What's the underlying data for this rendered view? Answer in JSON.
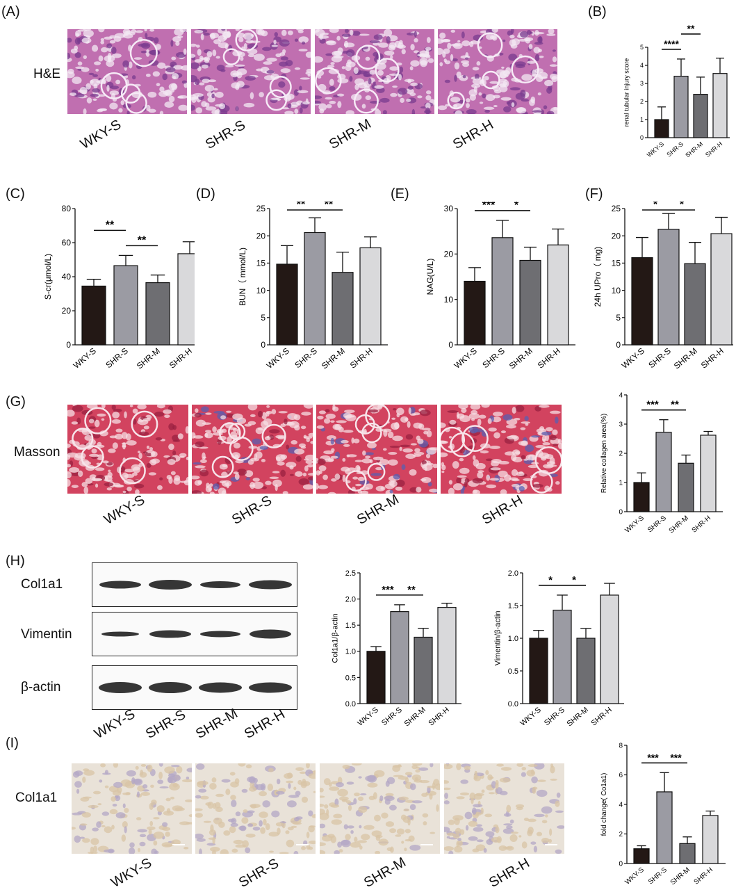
{
  "panels": {
    "A": "(A)",
    "B": "(B)",
    "C": "(C)",
    "D": "(D)",
    "E": "(E)",
    "F": "(F)",
    "G": "(G)",
    "H": "(H)",
    "I": "(I)"
  },
  "rows": {
    "he": "H&E",
    "masson": "Masson",
    "ihc": "Col1a1",
    "blot": [
      "Col1a1",
      "Vimentin",
      "β-actin"
    ]
  },
  "groups": [
    "WKY-S",
    "SHR-S",
    "SHR-M",
    "SHR-H"
  ],
  "colors": {
    "he": "#c06fb0",
    "masson": "#d2435f",
    "ihc": "#e9e2d8",
    "bars": [
      "#231815",
      "#9b9ba3",
      "#6e6e72",
      "#d9d9db"
    ]
  },
  "chart_data": [
    {
      "id": "B",
      "type": "bar",
      "categories": [
        "WKY-S",
        "SHR-S",
        "SHR-M",
        "SHR-H"
      ],
      "values": [
        1.0,
        3.4,
        2.4,
        3.55
      ],
      "errors": [
        0.7,
        0.95,
        0.95,
        0.85
      ],
      "ylabel": "renal tubular injury score",
      "ylim": [
        0,
        5
      ],
      "yticks": [
        "0",
        "1",
        "2",
        "3",
        "4",
        "5"
      ],
      "sig": [
        {
          "from": 0,
          "to": 1,
          "label": "****",
          "level": 0
        },
        {
          "from": 1,
          "to": 2,
          "label": "**",
          "level": 1
        }
      ]
    },
    {
      "id": "C",
      "type": "bar",
      "categories": [
        "WKY-S",
        "SHR-S",
        "SHR-M",
        "SHR-H"
      ],
      "values": [
        34.5,
        46.5,
        36.5,
        53.5
      ],
      "errors": [
        4,
        6,
        4.5,
        7
      ],
      "ylabel": "S-cr(μmol/L)",
      "ylim": [
        0,
        80
      ],
      "yticks": [
        "0",
        "20",
        "40",
        "60",
        "80"
      ],
      "sig": [
        {
          "from": 0,
          "to": 1,
          "label": "**",
          "level": 1
        },
        {
          "from": 1,
          "to": 2,
          "label": "**",
          "level": 0
        }
      ]
    },
    {
      "id": "D",
      "type": "bar",
      "categories": [
        "WKY-S",
        "SHR-S",
        "SHR-M",
        "SHR-H"
      ],
      "values": [
        14.8,
        20.6,
        13.3,
        17.8
      ],
      "errors": [
        3.4,
        2.7,
        3.7,
        2
      ],
      "ylabel": "BUN（ mmol/L)",
      "ylim": [
        0,
        25
      ],
      "yticks": [
        "0",
        "5",
        "10",
        "15",
        "20",
        "25"
      ],
      "sig": [
        {
          "from": 0,
          "to": 1,
          "label": "**",
          "level": 0
        },
        {
          "from": 1,
          "to": 2,
          "label": "**",
          "level": 0
        }
      ]
    },
    {
      "id": "E",
      "type": "bar",
      "categories": [
        "WKY-S",
        "SHR-S",
        "SHR-M",
        "SHR-H"
      ],
      "values": [
        14,
        23.6,
        18.6,
        22
      ],
      "errors": [
        3,
        3.8,
        2.9,
        3.5
      ],
      "ylabel": "NAG(U/L)",
      "ylim": [
        0,
        30
      ],
      "yticks": [
        "0",
        "10",
        "20",
        "30"
      ],
      "sig": [
        {
          "from": 0,
          "to": 1,
          "label": "***",
          "level": 0
        },
        {
          "from": 1,
          "to": 2,
          "label": "*",
          "level": 0
        }
      ]
    },
    {
      "id": "F",
      "type": "bar",
      "categories": [
        "WKY-S",
        "SHR-S",
        "SHR-M",
        "SHR-H"
      ],
      "values": [
        16,
        21.2,
        14.9,
        20.4
      ],
      "errors": [
        3.7,
        2.9,
        3.9,
        3
      ],
      "ylabel": "24h UPro（ mg)",
      "ylim": [
        0,
        25
      ],
      "yticks": [
        "0",
        "5",
        "10",
        "15",
        "20",
        "25"
      ],
      "sig": [
        {
          "from": 0,
          "to": 1,
          "label": "*",
          "level": 0
        },
        {
          "from": 1,
          "to": 2,
          "label": "*",
          "level": 0
        }
      ]
    },
    {
      "id": "G",
      "type": "bar",
      "categories": [
        "WKY-S",
        "SHR-S",
        "SHR-M",
        "SHR-H"
      ],
      "values": [
        1.0,
        2.72,
        1.66,
        2.62
      ],
      "errors": [
        0.33,
        0.43,
        0.28,
        0.13
      ],
      "ylabel": "Relative collagen area(%)",
      "ylim": [
        0,
        4
      ],
      "yticks": [
        "0",
        "1",
        "2",
        "3",
        "4"
      ],
      "sig": [
        {
          "from": 0,
          "to": 1,
          "label": "***",
          "level": 0
        },
        {
          "from": 1,
          "to": 2,
          "label": "**",
          "level": 0
        }
      ]
    },
    {
      "id": "H1",
      "type": "bar",
      "categories": [
        "WKY-S",
        "SHR-S",
        "SHR-M",
        "SHR-H"
      ],
      "values": [
        1.0,
        1.76,
        1.27,
        1.84
      ],
      "errors": [
        0.09,
        0.13,
        0.17,
        0.08
      ],
      "ylabel": "Col1a1/β-actin",
      "ylim": [
        0,
        2.5
      ],
      "yticks": [
        "0.0",
        "0.5",
        "1.0",
        "1.5",
        "2.0",
        "2.5"
      ],
      "sig": [
        {
          "from": 0,
          "to": 1,
          "label": "***",
          "level": 0
        },
        {
          "from": 1,
          "to": 2,
          "label": "**",
          "level": 0
        }
      ]
    },
    {
      "id": "H2",
      "type": "bar",
      "categories": [
        "WKY-S",
        "SHR-S",
        "SHR-M",
        "SHR-H"
      ],
      "values": [
        1.0,
        1.43,
        1.0,
        1.66
      ],
      "errors": [
        0.12,
        0.23,
        0.15,
        0.18
      ],
      "ylabel": "Vimentin/β-actin",
      "ylim": [
        0,
        2.0
      ],
      "yticks": [
        "0.0",
        "0.5",
        "1.0",
        "1.5",
        "2.0"
      ],
      "sig": [
        {
          "from": 0,
          "to": 1,
          "label": "*",
          "level": 0
        },
        {
          "from": 1,
          "to": 2,
          "label": "*",
          "level": 0
        }
      ]
    },
    {
      "id": "I",
      "type": "bar",
      "categories": [
        "WKY-S",
        "SHR-S",
        "SHR-M",
        "SHR-H"
      ],
      "values": [
        1.0,
        4.85,
        1.35,
        3.25
      ],
      "errors": [
        0.2,
        1.3,
        0.45,
        0.3
      ],
      "ylabel": "fold change( Co1a1)",
      "ylim": [
        0,
        8
      ],
      "yticks": [
        "0",
        "2",
        "4",
        "6",
        "8"
      ],
      "sig": [
        {
          "from": 0,
          "to": 1,
          "label": "***",
          "level": 0
        },
        {
          "from": 1,
          "to": 2,
          "label": "***",
          "level": 0
        }
      ]
    }
  ]
}
